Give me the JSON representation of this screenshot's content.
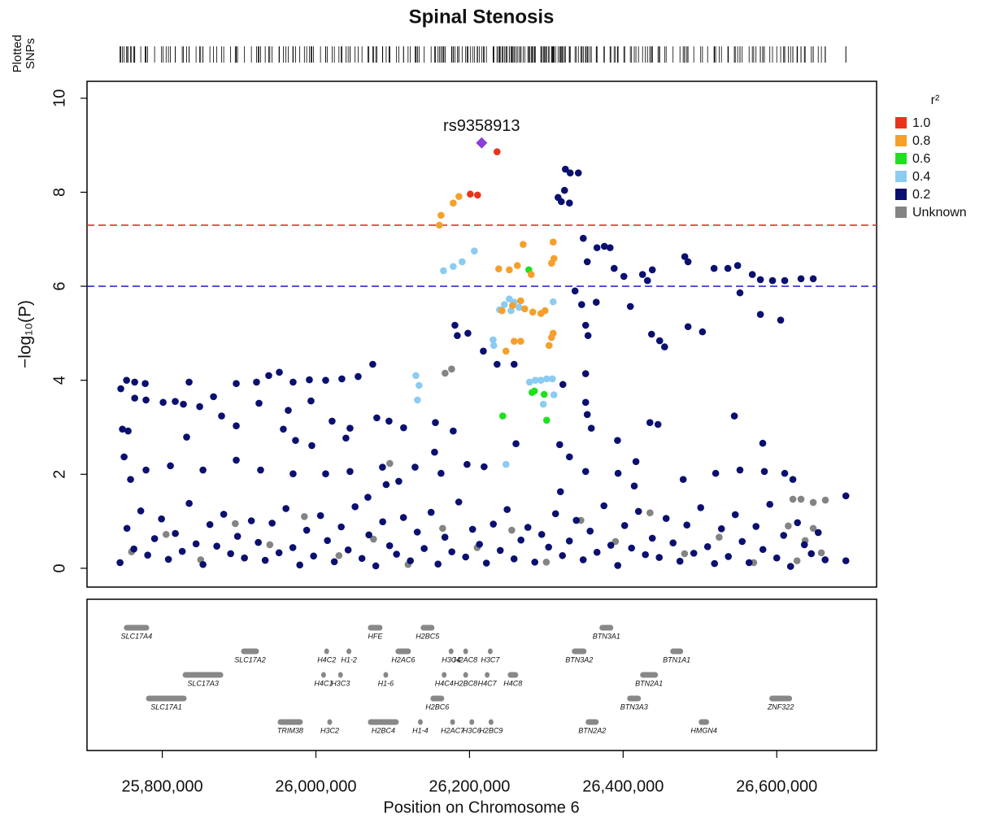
{
  "chart_data": {
    "type": "scatter",
    "title": "Spinal Stenosis",
    "rug_label": [
      "Plotted",
      "SNPs"
    ],
    "x_label": "Position on Chromosome 6",
    "y_label": "−log₁₀(P)",
    "legend_title": "r²",
    "legend": "right",
    "xlim": [
      25702000,
      26730000
    ],
    "ylim": [
      -0.4,
      10.36
    ],
    "xticks": [
      {
        "value": 25800000,
        "label": "25,800,000"
      },
      {
        "value": 26000000,
        "label": "26,000,000"
      },
      {
        "value": 26200000,
        "label": "26,200,000"
      },
      {
        "value": 26400000,
        "label": "26,400,000"
      },
      {
        "value": 26600000,
        "label": "26,600,000"
      }
    ],
    "yticks": [
      0,
      2,
      4,
      6,
      8,
      10
    ],
    "hlines": [
      {
        "value": 7.3,
        "color": "#e0302a"
      },
      {
        "value": 6,
        "color": "#2b2bd6"
      }
    ],
    "lead_snp": {
      "name": "rs9358913",
      "x": 26215800,
      "value": 9.05,
      "color": "#8b3fd6"
    },
    "series": [
      {
        "name": "1.0",
        "color": "#e8341c",
        "x": [
          26235900,
          26201000,
          26210500
        ],
        "values": [
          8.86,
          7.96,
          7.94
        ]
      },
      {
        "name": "0.8",
        "color": "#f5a02a",
        "x": [
          26160800,
          26162900,
          26178800,
          26186200,
          26238000,
          26251800,
          26262300,
          26269800,
          26280300,
          26308900,
          26310000,
          26306800,
          26242300,
          26256000,
          26271900,
          26282400,
          26293000,
          26298300,
          26266600,
          26258100,
          26266600,
          26247500,
          26303600,
          26308900,
          26306800
        ],
        "values": [
          7.3,
          7.51,
          7.77,
          7.91,
          6.37,
          6.35,
          6.44,
          6.89,
          6.25,
          6.94,
          6.59,
          6.49,
          5.48,
          5.59,
          5.52,
          5.45,
          5.42,
          5.48,
          5.69,
          4.83,
          4.83,
          4.62,
          4.74,
          5.0,
          4.91
        ]
      },
      {
        "name": "0.6",
        "color": "#1fe01f",
        "x": [
          26243300,
          26281400,
          26284500,
          26297200,
          26300400,
          26277200
        ],
        "values": [
          3.24,
          3.74,
          3.77,
          3.7,
          3.15,
          6.35
        ]
      },
      {
        "name": "0.4",
        "color": "#8ccbf2",
        "x": [
          26166100,
          26178800,
          26190400,
          26206300,
          26130100,
          26134300,
          26132200,
          26231700,
          26230700,
          26239100,
          26245400,
          26251800,
          26258100,
          26264500,
          26254000,
          26278200,
          26285600,
          26293000,
          26300400,
          26307900,
          26296100,
          26309900,
          26247500,
          26308900
        ],
        "values": [
          6.33,
          6.42,
          6.52,
          6.75,
          4.1,
          3.89,
          3.58,
          4.74,
          4.86,
          5.5,
          5.61,
          5.73,
          5.66,
          5.55,
          5.48,
          3.96,
          4.0,
          4.0,
          4.03,
          4.03,
          3.49,
          3.69,
          2.21,
          5.67
        ]
      },
      {
        "name": "0.2",
        "color": "#0a1070",
        "x": [
          26324800,
          26331100,
          26341700,
          26315300,
          26319500,
          26323700,
          26330100,
          26348100,
          26366000,
          26375600,
          26383000,
          26353300,
          26388300,
          26401000,
          26425300,
          26438000,
          26431700,
          26480300,
          26484500,
          26518400,
          26536400,
          26549100,
          26568200,
          26552100,
          26578700,
          26594500,
          26610400,
          26631600,
          26647500,
          26578700,
          26605100,
          26437000,
          26447600,
          26454000,
          26484500,
          26503300,
          26409400,
          26365000,
          26346000,
          26337400,
          26351200,
          26354300,
          26351200,
          26351200,
          26353300,
          26358600,
          26330100,
          26317400,
          26392700,
          26434900,
          26445400,
          26544800,
          26581800,
          26321600,
          26258100,
          26235900,
          26218000,
          26184100,
          26181000,
          26197900,
          26155600,
          26178800,
          26154500,
          26196800,
          26219000,
          26260500,
          26318400,
          25746000,
          25753500,
          25764100,
          25777800,
          25748100,
          25755500,
          25764100,
          25778800,
          25801100,
          25816900,
          25827500,
          25834900,
          25848700,
          25866700,
          25877200,
          25896300,
          25922700,
          25938600,
          25952400,
          25970300,
          25991500,
          26012700,
          26033800,
          26055000,
          26074000,
          26079300,
          26095200,
          26114200,
          25925900,
          25957600,
          25973500,
          25994700,
          26021100,
          26044400,
          26039100,
          25964000,
          25993600,
          25896300,
          25831700,
          25750300,
          25758700,
          25778800,
          25810600,
          25853000,
          25896300,
          25928000,
          25970300,
          26012700,
          26044400,
          26086700,
          26129100,
          26162900,
          26091500,
          26067700,
          26107900,
          26478200,
          26520500,
          26552100,
          26583900,
          26610400,
          26621000,
          26690000,
          26690000,
          26351200,
          26393400,
          26416700,
          26414500,
          25745000,
          25754000,
          25763000,
          25772000,
          25781000,
          25790000,
          25799000,
          25808000,
          25817000,
          25826000,
          25835000,
          25844000,
          25853000,
          25862000,
          25871000,
          25880000,
          25889000,
          25898000,
          25907000,
          25916000,
          25925000,
          25934000,
          25943000,
          25952000,
          25961000,
          25970000,
          25979000,
          25988000,
          25997000,
          26006000,
          26015000,
          26024000,
          26033000,
          26042000,
          26051000,
          26060000,
          26069000,
          26078000,
          26087000,
          26096000,
          26105000,
          26114000,
          26123000,
          26132000,
          26141000,
          26150000,
          26159000,
          26168000,
          26177000,
          26186000,
          26195000,
          26204000,
          26213000,
          26222000,
          26231000,
          26240000,
          26249000,
          26258000,
          26267000,
          26276000,
          26285000,
          26294000,
          26303000,
          26312000,
          26321000,
          26330000,
          26339000,
          26348000,
          26357000,
          26366000,
          26375000,
          26384000,
          26393000,
          26402000,
          26411000,
          26420000,
          26429000,
          26438000,
          26447000,
          26456000,
          26465000,
          26474000,
          26483000,
          26492000,
          26501000,
          26510000,
          26519000,
          26528000,
          26537000,
          26546000,
          26555000,
          26564000,
          26573000,
          26582000,
          26591000,
          26600000,
          26609000,
          26618000,
          26627000,
          26636000,
          26645000,
          26654000,
          26663000
        ],
        "values": [
          8.49,
          8.41,
          8.41,
          7.89,
          7.8,
          8.04,
          7.77,
          7.02,
          6.82,
          6.85,
          6.82,
          6.52,
          6.38,
          6.21,
          6.25,
          6.35,
          6.12,
          6.63,
          6.52,
          6.38,
          6.38,
          6.44,
          6.25,
          5.86,
          6.14,
          6.12,
          6.12,
          6.16,
          6.16,
          5.4,
          5.28,
          4.98,
          4.84,
          4.71,
          5.14,
          5.03,
          5.57,
          5.66,
          5.61,
          5.9,
          5.17,
          4.95,
          4.14,
          3.53,
          3.27,
          2.98,
          2.37,
          2.63,
          2.72,
          3.1,
          3.06,
          3.24,
          2.66,
          3.91,
          4.34,
          4.34,
          4.62,
          4.95,
          5.17,
          5.0,
          3.1,
          2.92,
          2.47,
          2.21,
          2.16,
          2.65,
          1.63,
          3.82,
          4.0,
          3.96,
          3.93,
          2.96,
          2.92,
          3.62,
          3.58,
          3.53,
          3.55,
          3.49,
          3.96,
          3.44,
          3.65,
          3.24,
          3.93,
          3.96,
          4.1,
          4.17,
          3.96,
          4.01,
          4.0,
          4.03,
          4.08,
          4.34,
          3.2,
          3.13,
          2.99,
          3.51,
          2.96,
          2.72,
          2.61,
          3.13,
          2.98,
          2.77,
          3.36,
          3.56,
          3.03,
          2.79,
          2.37,
          1.89,
          2.09,
          2.18,
          2.09,
          2.3,
          2.09,
          2.01,
          2.01,
          2.06,
          2.15,
          2.15,
          2.02,
          1.78,
          1.51,
          1.85,
          1.89,
          2.02,
          2.09,
          2.06,
          2.02,
          1.89,
          1.54,
          0.16,
          2.06,
          2.02,
          2.27,
          1.75,
          0.12,
          0.85,
          0.41,
          1.22,
          0.28,
          0.63,
          1.05,
          0.19,
          0.74,
          0.36,
          1.38,
          0.52,
          0.08,
          0.93,
          0.47,
          1.15,
          0.31,
          0.68,
          0.22,
          1.01,
          0.55,
          0.17,
          0.96,
          0.33,
          1.27,
          0.44,
          0.07,
          0.81,
          0.26,
          1.12,
          0.59,
          0.14,
          0.88,
          0.39,
          1.31,
          0.21,
          0.71,
          0.05,
          0.99,
          0.48,
          0.3,
          1.08,
          0.16,
          0.77,
          0.42,
          1.19,
          0.09,
          0.66,
          0.35,
          1.41,
          0.24,
          0.83,
          0.51,
          0.11,
          0.94,
          0.38,
          1.25,
          0.2,
          0.6,
          0.87,
          0.13,
          0.72,
          0.45,
          1.16,
          0.27,
          0.58,
          1.02,
          0.18,
          0.79,
          0.34,
          1.33,
          0.49,
          0.06,
          0.91,
          0.43,
          1.21,
          0.29,
          0.64,
          0.23,
          1.06,
          0.54,
          0.15,
          0.92,
          0.32,
          1.29,
          0.46,
          0.1,
          0.84,
          0.25,
          1.14,
          0.57,
          0.12,
          0.89,
          0.4,
          1.36,
          0.22,
          0.7,
          0.04,
          0.97,
          0.5,
          0.31,
          0.76,
          0.18
        ]
      },
      {
        "name": "Unknown",
        "color": "#848484",
        "x": [
          26168200,
          26176700,
          26096200,
          26621000,
          26631600,
          26647500,
          26663300,
          26647500,
          26637000,
          26658100,
          26626400,
          25760000,
          25805000,
          25850000,
          25895000,
          25940000,
          25985000,
          26030000,
          26075000,
          26120000,
          26165000,
          26210000,
          26255000,
          26300000,
          26345000,
          26390000,
          26435000,
          26480000,
          26525000,
          26570000,
          26615000
        ],
        "values": [
          4.15,
          4.24,
          2.23,
          1.47,
          1.47,
          1.4,
          1.45,
          0.85,
          0.59,
          0.33,
          0.16,
          0.35,
          0.72,
          0.18,
          0.95,
          0.5,
          1.1,
          0.27,
          0.62,
          0.08,
          0.85,
          0.44,
          0.81,
          0.13,
          1.02,
          0.57,
          1.18,
          0.31,
          0.66,
          0.12,
          0.9
        ]
      }
    ],
    "gene_tracks": [
      [
        {
          "name": "SLC17A4",
          "start": 25750000,
          "end": 25783000
        },
        {
          "name": "HFE",
          "start": 26067700,
          "end": 26086700
        },
        {
          "name": "H2BC5",
          "start": 26136400,
          "end": 26154400
        },
        {
          "name": "BTN3A1",
          "start": 26369200,
          "end": 26387200
        }
      ],
      [
        {
          "name": "SLC17A2",
          "start": 25902600,
          "end": 25925900
        },
        {
          "name": "H4C2",
          "start": 26012000,
          "end": 26016000
        },
        {
          "name": "H1-2",
          "start": 26041000,
          "end": 26045000
        },
        {
          "name": "H2AC6",
          "start": 26103600,
          "end": 26123700
        },
        {
          "name": "H3C4",
          "start": 26174000,
          "end": 26178000
        },
        {
          "name": "H2AC8",
          "start": 26193000,
          "end": 26197000
        },
        {
          "name": "H3C7",
          "start": 26225000,
          "end": 26229000
        },
        {
          "name": "BTN3A2",
          "start": 26333200,
          "end": 26352300
        },
        {
          "name": "BTN1A1",
          "start": 26461300,
          "end": 26478200
        }
      ],
      [
        {
          "name": "SLC17A3",
          "start": 25826500,
          "end": 25879400
        },
        {
          "name": "H4C1",
          "start": 26008000,
          "end": 26012000
        },
        {
          "name": "H3C3",
          "start": 26030000,
          "end": 26034000
        },
        {
          "name": "H1-6",
          "start": 26089000,
          "end": 26093000
        },
        {
          "name": "H4C4",
          "start": 26165000,
          "end": 26169000
        },
        {
          "name": "H2BC8",
          "start": 26193000,
          "end": 26197000
        },
        {
          "name": "H4C7",
          "start": 26221000,
          "end": 26225000
        },
        {
          "name": "H4C8",
          "start": 26249700,
          "end": 26263400
        },
        {
          "name": "BTN2A1",
          "start": 26422100,
          "end": 26445400
        }
      ],
      [
        {
          "name": "SLC17A1",
          "start": 25778800,
          "end": 25831700
        },
        {
          "name": "H2BC6",
          "start": 26149100,
          "end": 26167100
        },
        {
          "name": "BTN3A3",
          "start": 26405200,
          "end": 26423200
        },
        {
          "name": "ZNF322",
          "start": 26590300,
          "end": 26620000
        }
      ],
      [
        {
          "name": "TRIM38",
          "start": 25950200,
          "end": 25983000
        },
        {
          "name": "H3C2",
          "start": 26016000,
          "end": 26020000
        },
        {
          "name": "H2BC4",
          "start": 26067700,
          "end": 26107900
        },
        {
          "name": "H1-4",
          "start": 26134000,
          "end": 26138000
        },
        {
          "name": "H2AC7",
          "start": 26176000,
          "end": 26180000
        },
        {
          "name": "H3C6",
          "start": 26200000,
          "end": 26206000
        },
        {
          "name": "H2BC9",
          "start": 26226000,
          "end": 26230000
        },
        {
          "name": "BTN2A2",
          "start": 26351200,
          "end": 26368200
        },
        {
          "name": "HMGN4",
          "start": 26498300,
          "end": 26512000
        }
      ]
    ]
  }
}
